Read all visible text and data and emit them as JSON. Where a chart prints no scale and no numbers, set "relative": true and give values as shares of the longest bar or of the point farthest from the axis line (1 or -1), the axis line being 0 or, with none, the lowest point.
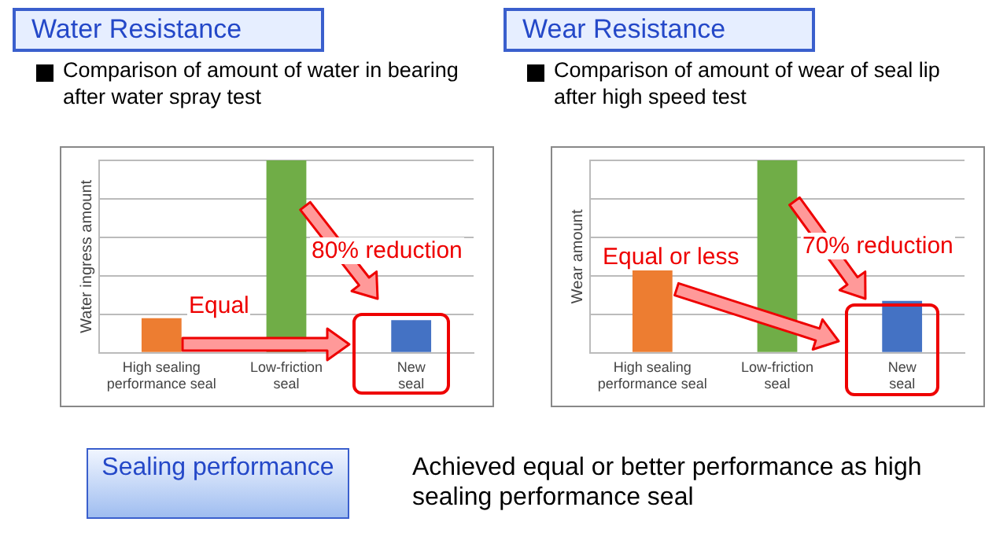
{
  "chart_data": [
    {
      "type": "bar",
      "title": "Water Resistance",
      "subtitle": "Comparison of amount of water in bearing after water spray test",
      "ylabel": "Water ingress amount",
      "categories": [
        "High sealing performance seal",
        "Low-friction seal",
        "New seal"
      ],
      "values": [
        0.18,
        1,
        0.17
      ],
      "colors": [
        "#ed7d31",
        "#70ad47",
        "#4472c4"
      ],
      "relative": true,
      "grid": "y",
      "annotations": [
        "Equal",
        "80% reduction"
      ]
    },
    {
      "type": "bar",
      "title": "Wear Resistance",
      "subtitle": "Comparison of amount of wear of seal lip after high speed test",
      "ylabel": "Wear amount",
      "categories": [
        "High sealing performance seal",
        "Low-friction seal",
        "New seal"
      ],
      "values": [
        0.43,
        1,
        0.27
      ],
      "colors": [
        "#ed7d31",
        "#70ad47",
        "#4472c4"
      ],
      "relative": true,
      "grid": "y",
      "annotations": [
        "Equal or less",
        "70% reduction"
      ]
    },
    {
      "type": "other",
      "title": "Sealing performance",
      "annotations": [
        "Achieved equal or better performance as high sealing performance seal"
      ]
    }
  ]
}
